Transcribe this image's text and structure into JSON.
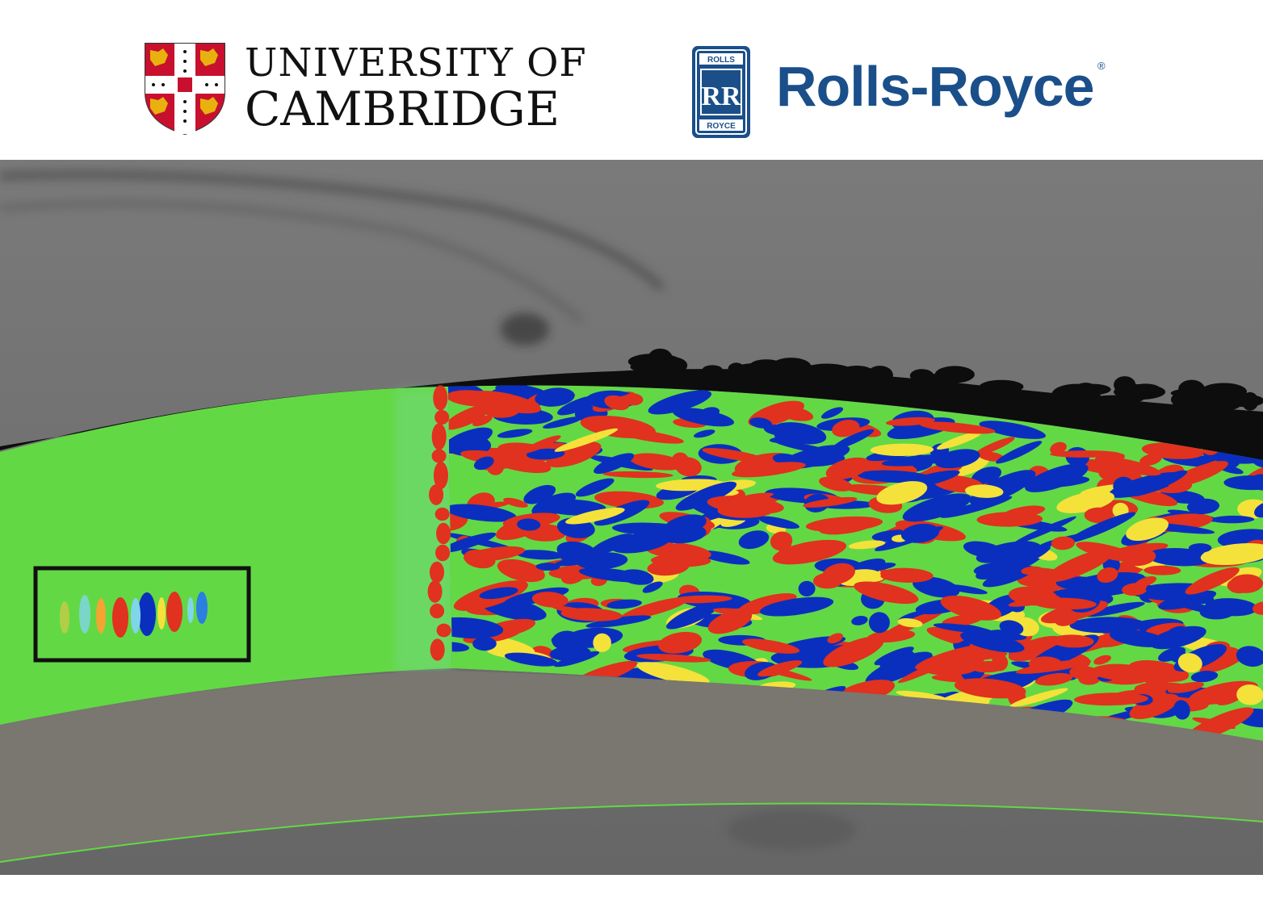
{
  "header": {
    "cambridge_logo": {
      "line1": "UNIVERSITY OF",
      "line2": "CAMBRIDGE",
      "shield_icon": "cambridge-coat-of-arms-icon"
    },
    "rollsroyce_logo": {
      "wordmark": "Rolls-Royce",
      "registered": "®",
      "badge_top": "ROLLS",
      "badge_monogram": "RR",
      "badge_bottom": "ROYCE",
      "brand_color": "#1a4f8a"
    }
  },
  "simulation": {
    "colors": {
      "background": "#6e6e6e",
      "laminar": "#63d845",
      "positive": "#e0321e",
      "negative": "#0a2fbf",
      "blade": "#7a7670"
    },
    "highlight_box": "wave-packet-box"
  }
}
